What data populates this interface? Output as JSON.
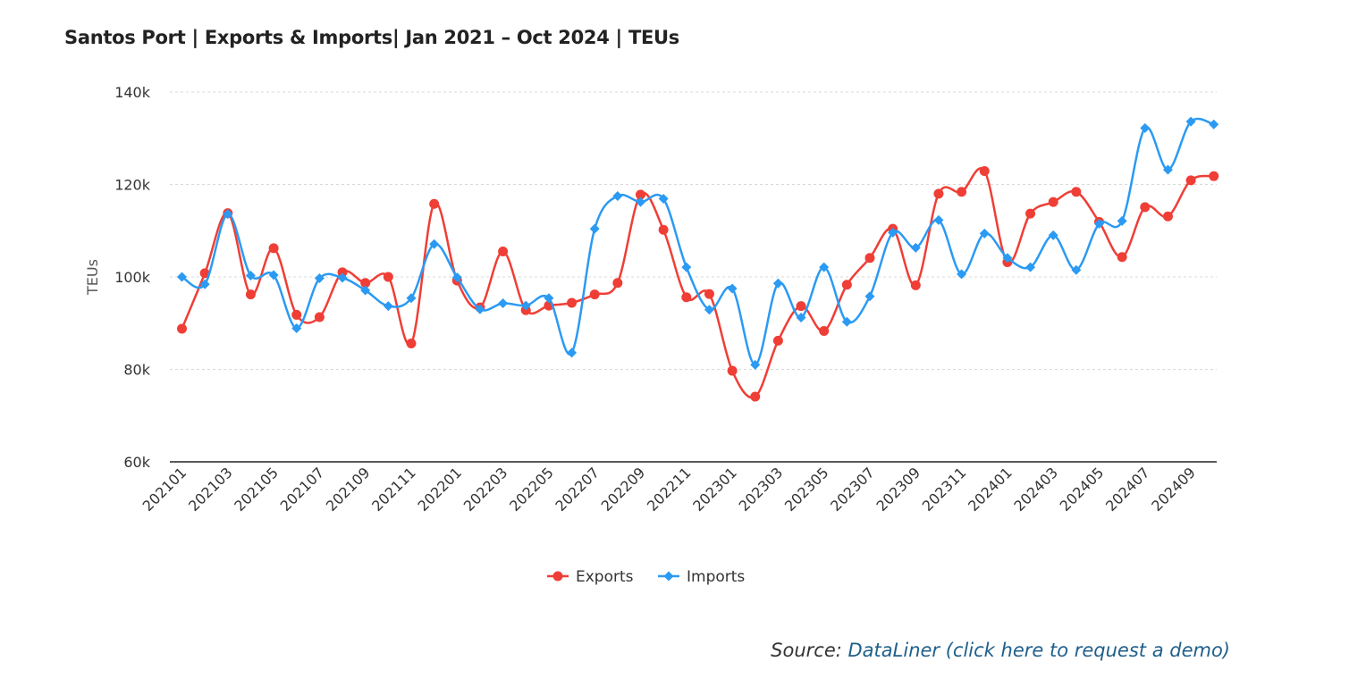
{
  "source": {
    "prefix": "Source: ",
    "link_text": "DataLiner (click here to request a demo)"
  },
  "chart_data": {
    "type": "line",
    "title": "Santos Port | Exports & Imports| Jan 2021 – Oct 2024 | TEUs",
    "xlabel": "",
    "ylabel": "TEUs",
    "ylim": [
      60000,
      140000
    ],
    "yticks": [
      60000,
      80000,
      100000,
      120000,
      140000
    ],
    "ytick_labels": [
      "60k",
      "80k",
      "100k",
      "120k",
      "140k"
    ],
    "xtick_labels": [
      "202101",
      "202103",
      "202105",
      "202107",
      "202109",
      "202111",
      "202201",
      "202203",
      "202205",
      "202207",
      "202209",
      "202211",
      "202301",
      "202303",
      "202305",
      "202307",
      "202309",
      "202311",
      "202401",
      "202403",
      "202405",
      "202407",
      "202409"
    ],
    "grid": true,
    "legend": "bottom-center",
    "categories": [
      "202101",
      "202102",
      "202103",
      "202104",
      "202105",
      "202106",
      "202107",
      "202108",
      "202109",
      "202110",
      "202111",
      "202112",
      "202201",
      "202202",
      "202203",
      "202204",
      "202205",
      "202206",
      "202207",
      "202208",
      "202209",
      "202210",
      "202211",
      "202212",
      "202301",
      "202302",
      "202303",
      "202304",
      "202305",
      "202306",
      "202307",
      "202308",
      "202309",
      "202310",
      "202311",
      "202312",
      "202401",
      "202402",
      "202403",
      "202404",
      "202405",
      "202406",
      "202407",
      "202408",
      "202409",
      "202410"
    ],
    "series": [
      {
        "name": "Exports",
        "color": "#ef3e36",
        "marker": "circle",
        "values": [
          88800,
          100800,
          113800,
          96200,
          106200,
          91800,
          91300,
          101000,
          98700,
          100000,
          85600,
          115800,
          99200,
          93400,
          105500,
          92800,
          93800,
          94400,
          96200,
          98700,
          117800,
          110200,
          95600,
          96300,
          79700,
          74100,
          86200,
          93700,
          88300,
          98300,
          104100,
          110400,
          98200,
          118000,
          118400,
          122900,
          103200,
          113700,
          116200,
          118400,
          111900,
          104300,
          115100,
          113100,
          120900,
          121800
        ]
      },
      {
        "name": "Imports",
        "color": "#2b9af3",
        "marker": "diamond",
        "values": [
          100000,
          98400,
          113600,
          100300,
          100400,
          88900,
          99700,
          99800,
          97100,
          93700,
          95400,
          107100,
          99900,
          93000,
          94300,
          93800,
          95400,
          83600,
          110400,
          117500,
          116200,
          116900,
          102100,
          92900,
          97500,
          81000,
          98600,
          91200,
          102100,
          90300,
          95800,
          109600,
          106300,
          112300,
          100600,
          109400,
          104100,
          102100,
          109000,
          101500,
          111500,
          112100,
          132200,
          123200,
          133600,
          133000
        ]
      }
    ]
  }
}
